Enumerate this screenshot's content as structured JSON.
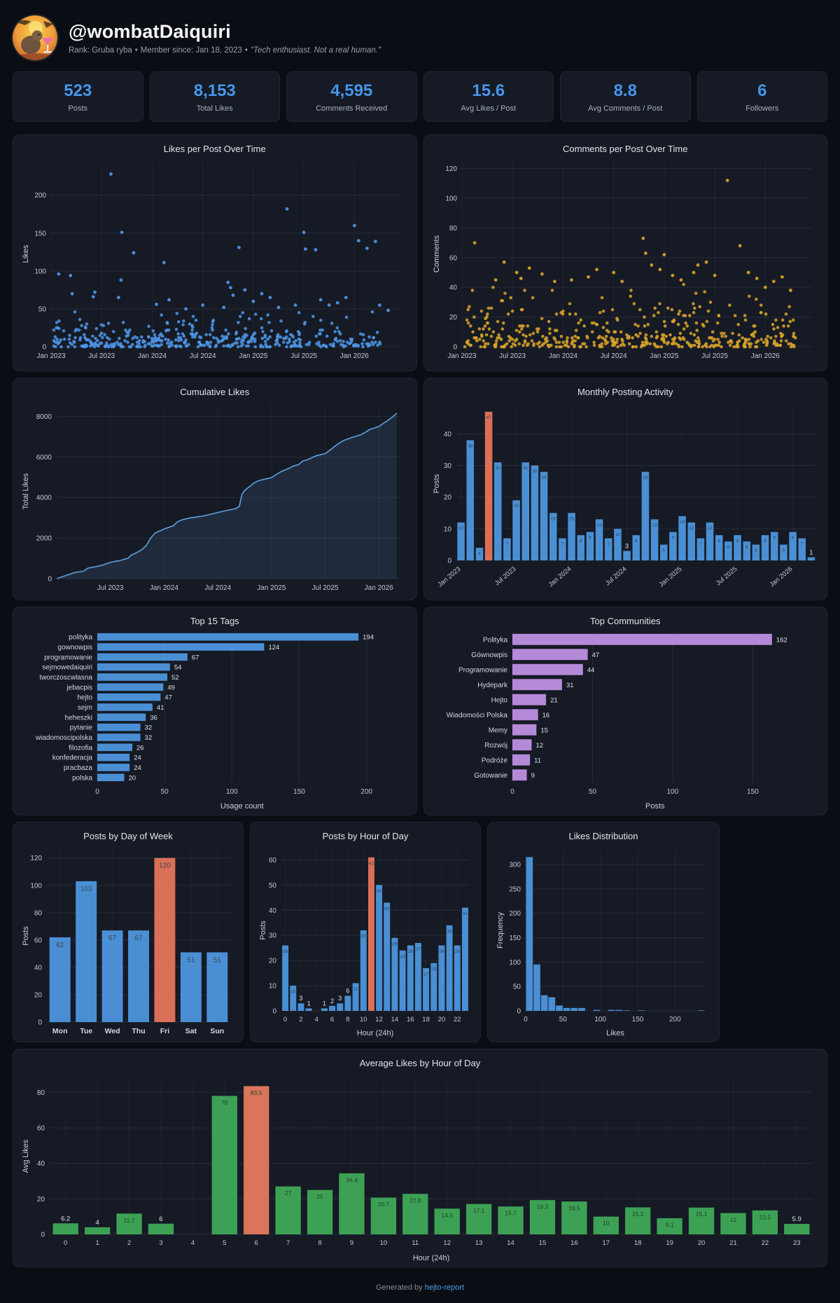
{
  "header": {
    "username": "@wombatDaiquiri",
    "rank_text": "Rank: Gruba ryba",
    "member_text": "Member since: Jan 18, 2023",
    "bio": "\"Tech enthusiast. Not a real human.\"",
    "separator": "•"
  },
  "stats": [
    {
      "value": "523",
      "label": "Posts"
    },
    {
      "value": "8,153",
      "label": "Total Likes"
    },
    {
      "value": "4,595",
      "label": "Comments Received"
    },
    {
      "value": "15.6",
      "label": "Avg Likes / Post"
    },
    {
      "value": "8.8",
      "label": "Avg Comments / Post"
    },
    {
      "value": "6",
      "label": "Followers"
    }
  ],
  "colors": {
    "accent_blue": "#4696ea",
    "bar_blue": "#4a8fd4",
    "highlight_orange": "#d97057",
    "scatter_blue": "#4d96e8",
    "scatter_yellow": "#d9a42a",
    "purple": "#b48ad8",
    "green": "#3da155",
    "link_blue": "#4a9eea"
  },
  "chart_data": [
    {
      "type": "scatter",
      "title": "Likes per Post Over Time",
      "ylabel": "Likes",
      "y_ticks": [
        0,
        50,
        100,
        150,
        200
      ],
      "y_max": 245,
      "x_max": 41.5,
      "x_ticks": [
        [
          0,
          "Jan 2023"
        ],
        [
          6,
          "Jul 2023"
        ],
        [
          12,
          "Jan 2024"
        ],
        [
          18,
          "Jul 2024"
        ],
        [
          24,
          "Jan 2025"
        ],
        [
          30,
          "Jul 2025"
        ],
        [
          36,
          "Jan 2026"
        ]
      ],
      "color": "#4d96e8",
      "cloud": {
        "n": 430,
        "scale": 12,
        "cap": 46,
        "seed": 11
      },
      "outliers": [
        [
          0.9,
          96
        ],
        [
          2.3,
          94
        ],
        [
          2.5,
          70
        ],
        [
          5,
          66
        ],
        [
          5.2,
          72
        ],
        [
          7.1,
          228
        ],
        [
          8.3,
          88
        ],
        [
          8.4,
          151
        ],
        [
          9.8,
          124
        ],
        [
          8,
          65
        ],
        [
          12.5,
          56
        ],
        [
          13.4,
          111
        ],
        [
          14,
          62
        ],
        [
          16,
          50
        ],
        [
          18,
          55
        ],
        [
          20.5,
          52
        ],
        [
          21,
          85
        ],
        [
          21.3,
          78
        ],
        [
          21.6,
          68
        ],
        [
          22.3,
          131
        ],
        [
          23,
          75
        ],
        [
          24,
          60
        ],
        [
          25,
          70
        ],
        [
          26,
          65
        ],
        [
          27,
          52
        ],
        [
          28,
          182
        ],
        [
          29,
          55
        ],
        [
          30,
          151
        ],
        [
          30.2,
          129
        ],
        [
          31.4,
          128
        ],
        [
          32,
          62
        ],
        [
          33,
          55
        ],
        [
          34,
          58
        ],
        [
          35,
          65
        ],
        [
          36,
          160
        ],
        [
          36.5,
          140
        ],
        [
          37.5,
          130
        ],
        [
          38.5,
          139
        ],
        [
          39,
          55
        ],
        [
          40,
          48
        ]
      ]
    },
    {
      "type": "scatter",
      "title": "Comments per Post Over Time",
      "ylabel": "Comments",
      "y_ticks": [
        0,
        20,
        40,
        60,
        80,
        100,
        120
      ],
      "y_max": 125,
      "x_max": 41.5,
      "x_ticks": [
        [
          0,
          "Jan 2023"
        ],
        [
          6,
          "Jul 2023"
        ],
        [
          12,
          "Jan 2024"
        ],
        [
          18,
          "Jul 2024"
        ],
        [
          24,
          "Jan 2025"
        ],
        [
          30,
          "Jul 2025"
        ],
        [
          36,
          "Jan 2026"
        ]
      ],
      "color": "#d9a42a",
      "cloud": {
        "n": 460,
        "scale": 9.5,
        "cap": 42,
        "seed": 23
      },
      "outliers": [
        [
          1.5,
          70
        ],
        [
          4,
          45
        ],
        [
          5,
          57
        ],
        [
          6.5,
          50
        ],
        [
          7,
          46
        ],
        [
          8,
          53
        ],
        [
          9.5,
          49
        ],
        [
          11,
          44
        ],
        [
          13,
          45
        ],
        [
          15,
          47
        ],
        [
          16,
          52
        ],
        [
          18,
          50
        ],
        [
          19,
          44
        ],
        [
          21.5,
          73
        ],
        [
          21.8,
          63
        ],
        [
          22.5,
          55
        ],
        [
          23.5,
          52
        ],
        [
          24,
          62
        ],
        [
          25,
          48
        ],
        [
          26,
          45
        ],
        [
          27.5,
          50
        ],
        [
          28,
          55
        ],
        [
          29,
          57
        ],
        [
          30,
          48
        ],
        [
          31.5,
          112
        ],
        [
          33,
          68
        ],
        [
          34,
          50
        ],
        [
          35,
          46
        ],
        [
          36,
          40
        ],
        [
          37,
          44
        ],
        [
          38,
          47
        ],
        [
          39,
          38
        ]
      ]
    },
    {
      "type": "area",
      "title": "Cumulative Likes",
      "ylabel": "Total Likes",
      "y_ticks": [
        0,
        2000,
        4000,
        6000,
        8000
      ],
      "y_max": 8600,
      "x_max": 38.6,
      "x_ticks": [
        [
          6,
          "Jul 2023"
        ],
        [
          12,
          "Jan 2024"
        ],
        [
          18,
          "Jul 2024"
        ],
        [
          24,
          "Jan 2025"
        ],
        [
          30,
          "Jul 2025"
        ],
        [
          36,
          "Jan 2026"
        ]
      ],
      "color": "#5b9bd8",
      "points": [
        [
          0,
          0
        ],
        [
          1,
          150
        ],
        [
          2,
          300
        ],
        [
          3,
          370
        ],
        [
          3.5,
          520
        ],
        [
          4,
          560
        ],
        [
          5,
          650
        ],
        [
          6,
          800
        ],
        [
          6.5,
          850
        ],
        [
          7,
          880
        ],
        [
          7.5,
          950
        ],
        [
          8,
          1010
        ],
        [
          8.3,
          1150
        ],
        [
          9,
          1300
        ],
        [
          9.5,
          1430
        ],
        [
          10,
          1620
        ],
        [
          10.5,
          2000
        ],
        [
          11,
          2250
        ],
        [
          11.5,
          2350
        ],
        [
          12,
          2450
        ],
        [
          13,
          2600
        ],
        [
          13.5,
          2800
        ],
        [
          14,
          2900
        ],
        [
          15,
          3000
        ],
        [
          16,
          3060
        ],
        [
          17,
          3150
        ],
        [
          18,
          3260
        ],
        [
          19,
          3360
        ],
        [
          20,
          3450
        ],
        [
          20.4,
          3560
        ],
        [
          20.7,
          4150
        ],
        [
          21,
          4350
        ],
        [
          21.5,
          4520
        ],
        [
          22,
          4700
        ],
        [
          22.5,
          4820
        ],
        [
          23,
          4880
        ],
        [
          24,
          4980
        ],
        [
          24.5,
          5120
        ],
        [
          25,
          5260
        ],
        [
          26,
          5450
        ],
        [
          26.5,
          5560
        ],
        [
          27,
          5620
        ],
        [
          27.5,
          5800
        ],
        [
          28,
          5860
        ],
        [
          29,
          6060
        ],
        [
          30,
          6160
        ],
        [
          30.5,
          6320
        ],
        [
          31,
          6500
        ],
        [
          31.5,
          6660
        ],
        [
          32,
          6800
        ],
        [
          33,
          6960
        ],
        [
          34,
          7100
        ],
        [
          34.5,
          7220
        ],
        [
          35,
          7360
        ],
        [
          36,
          7500
        ],
        [
          36.5,
          7660
        ],
        [
          37,
          7800
        ],
        [
          37.5,
          7960
        ],
        [
          38,
          8153
        ]
      ]
    },
    {
      "type": "bar",
      "title": "Monthly Posting Activity",
      "ylabel": "Posts",
      "y_ticks": [
        0,
        10,
        20,
        30,
        40
      ],
      "y_max": 48.5,
      "values": [
        12,
        38,
        4,
        47,
        31,
        7,
        19,
        31,
        30,
        28,
        15,
        7,
        15,
        8,
        9,
        13,
        7,
        10,
        3,
        8,
        28,
        13,
        5,
        9,
        14,
        12,
        7,
        12,
        8,
        6,
        8,
        6,
        5,
        8,
        9,
        5,
        9,
        7,
        1
      ],
      "highlight_index": 3,
      "x_ticks": [
        [
          0,
          "Jan 2023"
        ],
        [
          6,
          "Jul 2023"
        ],
        [
          12,
          "Jan 2024"
        ],
        [
          18,
          "Jul 2024"
        ],
        [
          24,
          "Jan 2025"
        ],
        [
          30,
          "Jul 2025"
        ],
        [
          36,
          "Jan 2026"
        ]
      ],
      "rotate_x": true,
      "bar_labels": true,
      "color": "#4a8fd4",
      "highlight_color": "#d97057"
    },
    {
      "type": "barh",
      "title": "Top 15 Tags",
      "xlabel": "Usage count",
      "categories": [
        "polityka",
        "gownowpis",
        "programowanie",
        "sejmowedaiquiri",
        "tworczoscwlasna",
        "jebacpis",
        "hejto",
        "sejm",
        "heheszki",
        "pytanie",
        "wiadomoscipolska",
        "filozofia",
        "konfederacja",
        "pracbaza",
        "polska"
      ],
      "values": [
        194,
        124,
        67,
        54,
        52,
        49,
        47,
        41,
        36,
        32,
        32,
        26,
        24,
        24,
        20
      ],
      "x_ticks": [
        0,
        50,
        100,
        150,
        200
      ],
      "x_max": 215,
      "color": "#4a8fd4"
    },
    {
      "type": "barh",
      "title": "Top Communities",
      "xlabel": "Posts",
      "categories": [
        "Polityka",
        "Gównowpis",
        "Programowanie",
        "Hydepark",
        "Hejto",
        "Wiadomości Polska",
        "Memy",
        "Rozwój",
        "Podróże",
        "Gotowanie"
      ],
      "values": [
        162,
        47,
        44,
        31,
        21,
        16,
        15,
        12,
        11,
        9
      ],
      "x_ticks": [
        0,
        50,
        100,
        150
      ],
      "x_max": 178,
      "color": "#b48ad8"
    },
    {
      "type": "bar",
      "title": "Posts by Day of Week",
      "ylabel": "Posts",
      "y_ticks": [
        0,
        20,
        40,
        60,
        80,
        100,
        120
      ],
      "y_max": 126,
      "categories": [
        "Mon",
        "Tue",
        "Wed",
        "Thu",
        "Fri",
        "Sat",
        "Sun"
      ],
      "values": [
        62,
        103,
        67,
        67,
        120,
        51,
        51
      ],
      "highlight_index": 4,
      "bar_labels": true,
      "color": "#4a8fd4",
      "highlight_color": "#d97057"
    },
    {
      "type": "bar",
      "title": "Posts by Hour of Day",
      "ylabel": "Posts",
      "xlabel": "Hour (24h)",
      "y_ticks": [
        0,
        10,
        20,
        30,
        40,
        50,
        60
      ],
      "y_max": 64,
      "values": [
        26,
        10,
        3,
        1,
        0,
        1,
        2,
        3,
        6,
        11,
        32,
        61,
        50,
        43,
        29,
        24,
        26,
        27,
        17,
        19,
        26,
        34,
        26,
        41
      ],
      "highlight_index": 11,
      "bar_labels": true,
      "x_tick_every": 2,
      "color": "#4a8fd4",
      "highlight_color": "#d97057"
    },
    {
      "type": "hist",
      "title": "Likes Distribution",
      "ylabel": "Frequency",
      "xlabel": "Likes",
      "y_ticks": [
        0,
        50,
        100,
        150,
        200,
        250,
        300
      ],
      "y_max": 330,
      "bin_width": 10,
      "x_ticks": [
        0,
        50,
        100,
        150,
        200
      ],
      "x_max": 240,
      "values": [
        315,
        95,
        32,
        28,
        11,
        6,
        6,
        6,
        0,
        2,
        0,
        2,
        2,
        1,
        0,
        1,
        0,
        0,
        0,
        0,
        0,
        0,
        0,
        1
      ],
      "color": "#4a8fd4"
    },
    {
      "type": "bar",
      "title": "Average Likes by Hour of Day",
      "ylabel": "Avg Likes",
      "xlabel": "Hour (24h)",
      "y_ticks": [
        0,
        20,
        40,
        60,
        80
      ],
      "y_max": 88,
      "values": [
        6.2,
        4,
        11.7,
        6,
        0,
        78,
        83.5,
        27,
        25,
        34.4,
        20.7,
        22.8,
        14.5,
        17.1,
        15.7,
        19.3,
        18.5,
        10,
        15.2,
        9.1,
        15.1,
        12,
        13.5,
        5.9
      ],
      "highlight_index": 6,
      "bar_labels": true,
      "x_tick_every": 1,
      "color": "#3da155",
      "highlight_color": "#d9755a"
    }
  ],
  "footer": {
    "generated_by": "Generated by",
    "link_label": "hejto-report"
  }
}
